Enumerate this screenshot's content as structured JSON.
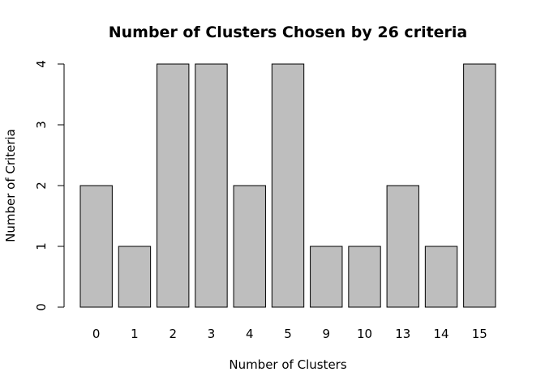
{
  "chart_data": {
    "type": "bar",
    "title": "Number of Clusters Chosen by 26 criteria",
    "xlabel": "Number of Clusters",
    "ylabel": "Number of Criteria",
    "categories": [
      "0",
      "1",
      "2",
      "3",
      "4",
      "5",
      "9",
      "10",
      "13",
      "14",
      "15"
    ],
    "values": [
      2,
      1,
      4,
      4,
      2,
      4,
      1,
      1,
      2,
      1,
      4
    ],
    "ylim": [
      0,
      4
    ],
    "yticks": [
      0,
      1,
      2,
      3,
      4
    ],
    "grid": false,
    "bar_color": "#bebebe",
    "bar_border_color": "#000000"
  }
}
